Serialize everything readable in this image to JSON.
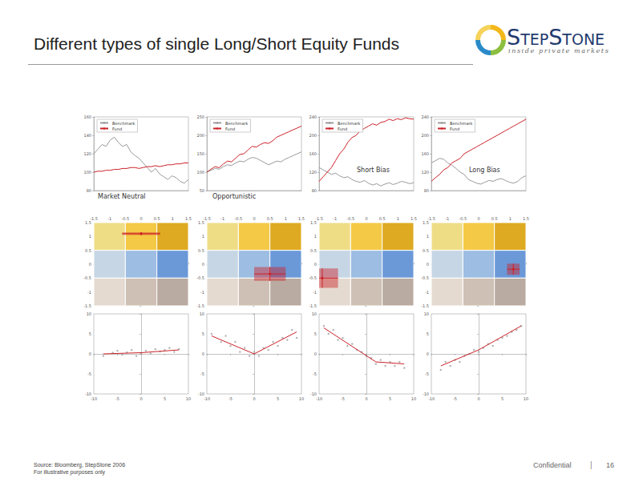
{
  "header": {
    "title": "Different types of single Long/Short Equity Funds",
    "logo": {
      "name": "StepStone",
      "tagline": "inside private markets"
    }
  },
  "footer": {
    "source": "Source: Bloomberg, StepStone 2006",
    "note": "For illustrative purposes only",
    "confidential": "Confidential",
    "separator": "|",
    "page": 16
  },
  "chart_data": [
    {
      "type": "line",
      "title": "Market Neutral",
      "categories": [
        null,
        null,
        null,
        null,
        null,
        null,
        null,
        null,
        null,
        null,
        null,
        null,
        null,
        null,
        null,
        null,
        null,
        null,
        null,
        null,
        null,
        null,
        null,
        null
      ],
      "ylim": [
        80,
        160
      ],
      "yticks": [
        80,
        100,
        120,
        140,
        160
      ],
      "grid": false,
      "legend": "upper left",
      "tick_labels": "y",
      "series": [
        {
          "name": "Benchmark",
          "color": "#9a9a9a",
          "values": [
            120,
            125,
            130,
            128,
            135,
            138,
            132,
            128,
            130,
            122,
            118,
            115,
            110,
            105,
            100,
            104,
            98,
            95,
            92,
            96,
            94,
            90,
            88,
            92
          ]
        },
        {
          "name": "Fund",
          "color": "#cc2229",
          "values": [
            100,
            101,
            101,
            102,
            102,
            103,
            103,
            104,
            104,
            105,
            105,
            104,
            105,
            106,
            106,
            107,
            106,
            107,
            108,
            108,
            109,
            109,
            110,
            110
          ]
        }
      ]
    },
    {
      "type": "line",
      "title": "Opportunistic",
      "categories": [
        null,
        null,
        null,
        null,
        null,
        null,
        null,
        null,
        null,
        null,
        null,
        null,
        null,
        null,
        null,
        null,
        null,
        null,
        null,
        null,
        null,
        null,
        null,
        null
      ],
      "ylim": [
        50,
        250
      ],
      "yticks": [
        50,
        100,
        150,
        200,
        250
      ],
      "grid": false,
      "legend": "upper left",
      "tick_labels": "y",
      "series": [
        {
          "name": "Benchmark",
          "color": "#9a9a9a",
          "values": [
            100,
            105,
            110,
            108,
            115,
            120,
            118,
            125,
            130,
            128,
            135,
            140,
            138,
            132,
            126,
            120,
            125,
            130,
            128,
            135,
            140,
            145,
            150,
            155
          ]
        },
        {
          "name": "Fund",
          "color": "#cc2229",
          "values": [
            100,
            108,
            115,
            112,
            122,
            130,
            128,
            138,
            148,
            150,
            160,
            170,
            168,
            175,
            180,
            178,
            185,
            195,
            200,
            205,
            210,
            215,
            220,
            225
          ]
        }
      ]
    },
    {
      "type": "line",
      "title": "Short Bias",
      "categories": [
        null,
        null,
        null,
        null,
        null,
        null,
        null,
        null,
        null,
        null,
        null,
        null,
        null,
        null,
        null,
        null,
        null,
        null,
        null,
        null,
        null,
        null,
        null,
        null
      ],
      "ylim": [
        80,
        240
      ],
      "yticks": [
        80,
        120,
        160,
        200,
        240
      ],
      "grid": false,
      "legend": "upper left",
      "tick_labels": "y",
      "series": [
        {
          "name": "Benchmark",
          "color": "#9a9a9a",
          "values": [
            130,
            125,
            120,
            115,
            118,
            112,
            108,
            110,
            104,
            100,
            98,
            102,
            96,
            92,
            95,
            90,
            94,
            97,
            93,
            96,
            100,
            98,
            95,
            97
          ]
        },
        {
          "name": "Fund",
          "color": "#cc2229",
          "values": [
            100,
            110,
            120,
            130,
            145,
            160,
            170,
            185,
            195,
            200,
            210,
            215,
            220,
            225,
            222,
            228,
            230,
            235,
            232,
            236,
            234,
            238,
            236,
            235
          ]
        }
      ]
    },
    {
      "type": "line",
      "title": "Long Bias",
      "categories": [
        null,
        null,
        null,
        null,
        null,
        null,
        null,
        null,
        null,
        null,
        null,
        null,
        null,
        null,
        null,
        null,
        null,
        null,
        null,
        null,
        null,
        null,
        null,
        null
      ],
      "ylim": [
        80,
        240
      ],
      "yticks": [
        80,
        120,
        160,
        200,
        240
      ],
      "grid": false,
      "legend": "upper left",
      "tick_labels": "y",
      "series": [
        {
          "name": "Benchmark",
          "color": "#9a9a9a",
          "values": [
            140,
            145,
            150,
            148,
            140,
            135,
            128,
            120,
            115,
            104,
            100,
            96,
            94,
            98,
            102,
            100,
            104,
            106,
            102,
            98,
            96,
            100,
            108,
            112
          ]
        },
        {
          "name": "Fund",
          "color": "#cc2229",
          "values": [
            100,
            108,
            115,
            125,
            130,
            140,
            145,
            150,
            160,
            165,
            170,
            175,
            180,
            185,
            190,
            195,
            200,
            205,
            210,
            215,
            220,
            225,
            230,
            235
          ]
        }
      ]
    },
    {
      "type": "style_box",
      "xlim": [
        -1.5,
        1.5
      ],
      "xticks": [
        -1.5,
        -1,
        -0.5,
        0,
        0.5,
        1,
        1.5
      ],
      "ylim": [
        -1.5,
        1.5
      ],
      "yticks": [
        -1.5,
        -1,
        -0.5,
        0,
        0.5,
        1,
        1.5
      ],
      "grid": false,
      "cell_colors": [
        [
          "#efdd86",
          "#f4c945",
          "#deaa22"
        ],
        [
          "#c6d6e4",
          "#9dbde2",
          "#6b99d8"
        ],
        [
          "#e4dad0",
          "#cec0b4",
          "#b9aba1"
        ]
      ],
      "series": [
        {
          "color": "#cc2229",
          "x": [
            0
          ],
          "y": [
            1.1
          ],
          "x_err": [
            0.6
          ],
          "y_err": [
            0.05
          ]
        }
      ]
    },
    {
      "type": "style_box",
      "xlim": [
        -1.5,
        1.5
      ],
      "xticks": [
        -1.5,
        -1,
        -0.5,
        0,
        0.5,
        1,
        1.5
      ],
      "ylim": [
        -1.5,
        1.5
      ],
      "yticks": [
        -1.5,
        -1,
        -0.5,
        0,
        0.5,
        1,
        1.5
      ],
      "grid": false,
      "cell_colors": [
        [
          "#efdd86",
          "#f4c945",
          "#deaa22"
        ],
        [
          "#c6d6e4",
          "#9dbde2",
          "#6b99d8"
        ],
        [
          "#e4dad0",
          "#cec0b4",
          "#b9aba1"
        ]
      ],
      "series": [
        {
          "color": "#cc2229",
          "x": [
            0.5
          ],
          "y": [
            -0.35
          ],
          "x_err": [
            0.5
          ],
          "y_err": [
            0.25
          ]
        }
      ]
    },
    {
      "type": "style_box",
      "xlim": [
        -1.5,
        1.5
      ],
      "xticks": [
        -1.5,
        -1,
        -0.5,
        0,
        0.5,
        1,
        1.5
      ],
      "ylim": [
        -1.5,
        1.5
      ],
      "yticks": [
        -1.5,
        -1,
        -0.5,
        0,
        0.5,
        1,
        1.5
      ],
      "grid": false,
      "cell_colors": [
        [
          "#efdd86",
          "#f4c945",
          "#deaa22"
        ],
        [
          "#c6d6e4",
          "#9dbde2",
          "#6b99d8"
        ],
        [
          "#e4dad0",
          "#cec0b4",
          "#b9aba1"
        ]
      ],
      "series": [
        {
          "color": "#cc2229",
          "x": [
            -1.4
          ],
          "y": [
            -0.5
          ],
          "x_err": [
            0.5
          ],
          "y_err": [
            0.35
          ]
        }
      ]
    },
    {
      "type": "style_box",
      "xlim": [
        -1.5,
        1.5
      ],
      "xticks": [
        -1.5,
        -1,
        -0.5,
        0,
        0.5,
        1,
        1.5
      ],
      "ylim": [
        -1.5,
        1.5
      ],
      "yticks": [
        -1.5,
        -1,
        -0.5,
        0,
        0.5,
        1,
        1.5
      ],
      "grid": false,
      "cell_colors": [
        [
          "#efdd86",
          "#f4c945",
          "#deaa22"
        ],
        [
          "#c6d6e4",
          "#9dbde2",
          "#6b99d8"
        ],
        [
          "#e4dad0",
          "#cec0b4",
          "#b9aba1"
        ]
      ],
      "series": [
        {
          "color": "#cc2229",
          "x": [
            1.1
          ],
          "y": [
            -0.18
          ],
          "x_err": [
            0.2
          ],
          "y_err": [
            0.2
          ]
        }
      ]
    },
    {
      "type": "scatter",
      "xlim": [
        -10,
        10
      ],
      "xticks": [
        -10,
        -5,
        0,
        5,
        10
      ],
      "ylim": [
        -10,
        10
      ],
      "yticks": [
        -10,
        -5,
        0,
        5,
        10
      ],
      "grid": false,
      "series": [
        {
          "type": "scatter",
          "color": "#a0a0a0",
          "x": [
            -8,
            -6,
            -5,
            -4,
            -3,
            -2,
            -1,
            0,
            1,
            2,
            3,
            4,
            5,
            6,
            7,
            8
          ],
          "y": [
            -0.5,
            0.3,
            0.8,
            -0.2,
            0.4,
            1,
            -0.5,
            0.2,
            0.8,
            0.1,
            1.2,
            0.6,
            1,
            1.5,
            0.5,
            1.2
          ]
        },
        {
          "type": "line",
          "color": "#cc2229",
          "x": [
            -8,
            0,
            8
          ],
          "y": [
            0,
            0.3,
            1
          ]
        }
      ]
    },
    {
      "type": "scatter",
      "xlim": [
        -10,
        10
      ],
      "xticks": [
        -10,
        -5,
        0,
        5,
        10
      ],
      "ylim": [
        -10,
        10
      ],
      "yticks": [
        -10,
        -5,
        0,
        5,
        10
      ],
      "grid": false,
      "series": [
        {
          "type": "scatter",
          "color": "#a0a0a0",
          "x": [
            -9,
            -7,
            -6,
            -5,
            -4,
            -3,
            -2,
            -1,
            0,
            1,
            2,
            3,
            4,
            5,
            6,
            7,
            8,
            9
          ],
          "y": [
            5,
            3,
            4.5,
            2,
            3,
            0.5,
            1.5,
            -0.5,
            0.5,
            -0.5,
            1.5,
            1,
            3,
            2,
            4,
            3.5,
            6,
            4
          ]
        },
        {
          "type": "line",
          "color": "#cc2229",
          "x": [
            -9,
            0,
            9
          ],
          "y": [
            4.5,
            0,
            5.5
          ]
        }
      ]
    },
    {
      "type": "scatter",
      "xlim": [
        -10,
        10
      ],
      "xticks": [
        -10,
        -5,
        0,
        5,
        10
      ],
      "ylim": [
        -10,
        10
      ],
      "yticks": [
        -10,
        -5,
        0,
        5,
        10
      ],
      "grid": false,
      "series": [
        {
          "type": "scatter",
          "color": "#a0a0a0",
          "x": [
            -9,
            -8,
            -7,
            -6,
            -5,
            -4,
            -3,
            -2,
            -1,
            0,
            1,
            2,
            3,
            4,
            5,
            6,
            7,
            8
          ],
          "y": [
            7,
            5,
            6,
            3.5,
            4,
            2,
            2.5,
            1,
            0.5,
            -0.5,
            -1,
            -2.5,
            -1.5,
            -3,
            -2,
            -3,
            -2,
            -3.5
          ]
        },
        {
          "type": "line",
          "color": "#cc2229",
          "x": [
            -9,
            2,
            8
          ],
          "y": [
            6.5,
            -2,
            -2.5
          ]
        }
      ]
    },
    {
      "type": "scatter",
      "xlim": [
        -10,
        10
      ],
      "xticks": [
        -10,
        -5,
        0,
        5,
        10
      ],
      "ylim": [
        -10,
        10
      ],
      "yticks": [
        -10,
        -5,
        0,
        5,
        10
      ],
      "grid": false,
      "series": [
        {
          "type": "scatter",
          "color": "#a0a0a0",
          "x": [
            -8,
            -7,
            -6,
            -5,
            -4,
            -3,
            -2,
            -1,
            0,
            1,
            2,
            3,
            4,
            5,
            6,
            7,
            8,
            9
          ],
          "y": [
            -4,
            -2,
            -3,
            -1.5,
            -2,
            -0.5,
            0,
            1,
            0.5,
            1.5,
            2.5,
            2,
            3.5,
            4,
            4.5,
            5.5,
            6,
            7
          ]
        },
        {
          "type": "line",
          "color": "#cc2229",
          "x": [
            -8,
            0,
            9
          ],
          "y": [
            -3,
            1,
            7
          ]
        }
      ]
    }
  ]
}
